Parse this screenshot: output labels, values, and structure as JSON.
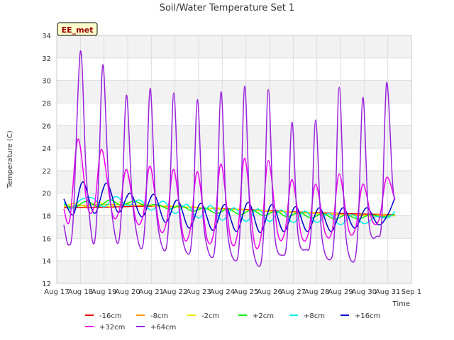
{
  "chart_data": {
    "type": "line",
    "title": "Soil/Water Temperature Set 1",
    "xlabel": "Time",
    "ylabel": "Temperature (C)",
    "badge": "EE_met",
    "xlim": [
      0,
      15
    ],
    "ylim": [
      12,
      34
    ],
    "x_ticks": [
      {
        "v": 0,
        "label": "Aug 17"
      },
      {
        "v": 1,
        "label": "Aug 18"
      },
      {
        "v": 2,
        "label": "Aug 19"
      },
      {
        "v": 3,
        "label": "Aug 20"
      },
      {
        "v": 4,
        "label": "Aug 21"
      },
      {
        "v": 5,
        "label": "Aug 22"
      },
      {
        "v": 6,
        "label": "Aug 23"
      },
      {
        "v": 7,
        "label": "Aug 24"
      },
      {
        "v": 8,
        "label": "Aug 25"
      },
      {
        "v": 9,
        "label": "Aug 26"
      },
      {
        "v": 10,
        "label": "Aug 27"
      },
      {
        "v": 11,
        "label": "Aug 28"
      },
      {
        "v": 12,
        "label": "Aug 29"
      },
      {
        "v": 13,
        "label": "Aug 30"
      },
      {
        "v": 14,
        "label": "Aug 31"
      },
      {
        "v": 15,
        "label": "Sep 1"
      }
    ],
    "y_ticks": [
      "12",
      "14",
      "16",
      "18",
      "20",
      "22",
      "24",
      "26",
      "28",
      "30",
      "32",
      "34"
    ],
    "series": [
      {
        "name": "-16cm",
        "color": "#ee0000",
        "x": [
          0.3,
          2,
          4,
          6,
          8,
          10,
          12,
          14.3
        ],
        "y": [
          18.7,
          18.75,
          18.85,
          18.7,
          18.55,
          18.35,
          18.2,
          18.1
        ]
      },
      {
        "name": "-8cm",
        "color": "#ff9900",
        "x": [
          0.3,
          1,
          2,
          3,
          4,
          5,
          6,
          7,
          8,
          9,
          10,
          11,
          12,
          13,
          14.3
        ],
        "y": [
          18.8,
          18.9,
          19.0,
          18.95,
          18.9,
          18.8,
          18.7,
          18.6,
          18.5,
          18.4,
          18.3,
          18.2,
          18.1,
          18.0,
          18.0
        ]
      },
      {
        "name": "-2cm",
        "color": "#eeee00",
        "x": [
          0.3,
          0.75,
          1.25,
          1.75,
          2.25,
          2.75,
          3.25,
          3.75,
          4.25,
          4.75,
          5.25,
          5.75,
          6.25,
          6.75,
          7.25,
          7.75,
          8.25,
          8.75,
          9.25,
          9.75,
          10.25,
          10.75,
          11.25,
          11.75,
          12.25,
          12.75,
          13.25,
          13.75,
          14.3
        ],
        "y": [
          18.8,
          19.1,
          18.8,
          19.2,
          18.8,
          19.2,
          18.9,
          19.0,
          18.8,
          18.9,
          18.7,
          18.8,
          18.6,
          18.7,
          18.5,
          18.6,
          18.4,
          18.5,
          18.3,
          18.4,
          18.2,
          18.3,
          18.1,
          18.2,
          18.0,
          18.1,
          18.0,
          18.1,
          18.0
        ]
      },
      {
        "name": "+2cm",
        "color": "#00ee00",
        "x": [
          0.3,
          0.75,
          1.25,
          1.75,
          2.25,
          2.75,
          3.25,
          3.75,
          4.25,
          4.75,
          5.25,
          5.75,
          6.25,
          6.75,
          7.25,
          7.75,
          8.25,
          8.75,
          9.25,
          9.75,
          10.25,
          10.75,
          11.25,
          11.75,
          12.25,
          12.75,
          13.25,
          13.75,
          14.3
        ],
        "y": [
          19.0,
          18.7,
          19.3,
          18.8,
          19.4,
          18.9,
          19.3,
          18.9,
          19.0,
          18.6,
          18.9,
          18.4,
          18.7,
          18.2,
          18.6,
          18.1,
          18.5,
          18.0,
          18.4,
          17.9,
          18.3,
          17.8,
          18.2,
          17.7,
          18.1,
          17.7,
          18.1,
          17.9,
          18.1
        ]
      },
      {
        "name": "+8cm",
        "color": "#00eeee",
        "x": [
          0.3,
          0.6,
          1.0,
          1.5,
          2.0,
          2.5,
          3.0,
          3.5,
          4.0,
          4.5,
          5.0,
          5.5,
          6.0,
          6.5,
          7.0,
          7.5,
          8.0,
          8.5,
          9.0,
          9.5,
          10.0,
          10.5,
          11.0,
          11.5,
          12.0,
          12.5,
          13.0,
          13.5,
          14.0,
          14.3
        ],
        "y": [
          19.2,
          18.6,
          19.4,
          19.6,
          18.8,
          19.7,
          18.9,
          19.4,
          18.5,
          19.3,
          18.2,
          19.0,
          17.8,
          18.9,
          17.6,
          18.7,
          17.5,
          18.6,
          17.5,
          18.5,
          17.4,
          18.4,
          17.4,
          18.2,
          17.2,
          18.1,
          17.3,
          17.9,
          17.8,
          18.4
        ]
      },
      {
        "name": "+16cm",
        "color": "#0000cc",
        "x": [
          0.3,
          0.7,
          1.1,
          1.6,
          2.1,
          2.6,
          3.1,
          3.6,
          4.1,
          4.6,
          5.1,
          5.6,
          6.1,
          6.6,
          7.1,
          7.6,
          8.1,
          8.6,
          9.1,
          9.6,
          10.1,
          10.6,
          11.1,
          11.6,
          12.1,
          12.6,
          13.1,
          13.6,
          14.0,
          14.3
        ],
        "y": [
          19.5,
          18.1,
          21.0,
          18.2,
          20.9,
          18.3,
          20.0,
          17.9,
          19.9,
          17.4,
          19.4,
          16.9,
          19.1,
          16.7,
          19.0,
          16.6,
          19.2,
          16.5,
          19.0,
          16.6,
          18.8,
          16.6,
          18.7,
          16.6,
          18.7,
          16.9,
          18.7,
          17.2,
          18.1,
          19.6
        ]
      },
      {
        "name": "+32cm",
        "color": "#ee00ee",
        "x": [
          0.3,
          0.55,
          0.9,
          1.3,
          1.6,
          1.9,
          2.35,
          2.65,
          2.95,
          3.35,
          3.65,
          3.95,
          4.35,
          4.65,
          4.95,
          5.35,
          5.65,
          5.95,
          6.35,
          6.65,
          6.95,
          7.35,
          7.65,
          7.95,
          8.35,
          8.65,
          8.95,
          9.35,
          9.65,
          9.95,
          10.35,
          10.65,
          10.95,
          11.35,
          11.65,
          11.95,
          12.35,
          12.65,
          12.95,
          13.35,
          13.65,
          13.95,
          14.3
        ],
        "y": [
          18.6,
          17.6,
          24.8,
          18.8,
          19.0,
          23.9,
          18.2,
          18.5,
          22.1,
          17.6,
          18.0,
          22.4,
          16.9,
          17.5,
          22.1,
          16.2,
          16.8,
          21.9,
          16.0,
          16.6,
          22.6,
          15.9,
          16.5,
          23.1,
          15.7,
          16.3,
          22.9,
          16.4,
          16.6,
          21.2,
          16.2,
          16.5,
          20.8,
          16.5,
          16.7,
          21.7,
          16.7,
          17.0,
          20.8,
          17.5,
          17.8,
          21.4,
          19.4
        ]
      },
      {
        "name": "+64cm",
        "color": "#9922dd",
        "x": [
          0.3,
          0.5,
          0.7,
          1.0,
          1.25,
          1.55,
          1.75,
          1.95,
          2.2,
          2.55,
          2.75,
          2.95,
          3.2,
          3.55,
          3.75,
          3.95,
          4.2,
          4.55,
          4.75,
          4.95,
          5.2,
          5.55,
          5.75,
          5.95,
          6.2,
          6.55,
          6.75,
          6.95,
          7.2,
          7.55,
          7.75,
          7.95,
          8.2,
          8.55,
          8.75,
          8.95,
          9.2,
          9.55,
          9.75,
          9.95,
          10.2,
          10.55,
          10.75,
          10.95,
          11.2,
          11.55,
          11.75,
          11.95,
          12.2,
          12.55,
          12.75,
          12.95,
          13.2,
          13.55,
          13.75,
          13.95,
          14.2,
          14.3
        ],
        "y": [
          17.2,
          15.4,
          17.8,
          32.6,
          21.5,
          15.5,
          20.1,
          31.4,
          21.0,
          15.6,
          18.8,
          28.7,
          19.3,
          15.1,
          18.0,
          29.3,
          18.6,
          14.9,
          17.9,
          28.9,
          17.9,
          14.6,
          17.2,
          28.3,
          17.5,
          14.3,
          17.0,
          29.0,
          17.1,
          14.0,
          16.7,
          29.5,
          16.9,
          13.5,
          16.6,
          29.2,
          16.6,
          14.5,
          16.3,
          26.3,
          16.4,
          15.0,
          16.4,
          26.5,
          16.4,
          14.1,
          16.8,
          29.4,
          16.8,
          13.9,
          17.3,
          28.5,
          17.4,
          16.2,
          17.8,
          29.8,
          21.0,
          19.5
        ]
      }
    ]
  }
}
